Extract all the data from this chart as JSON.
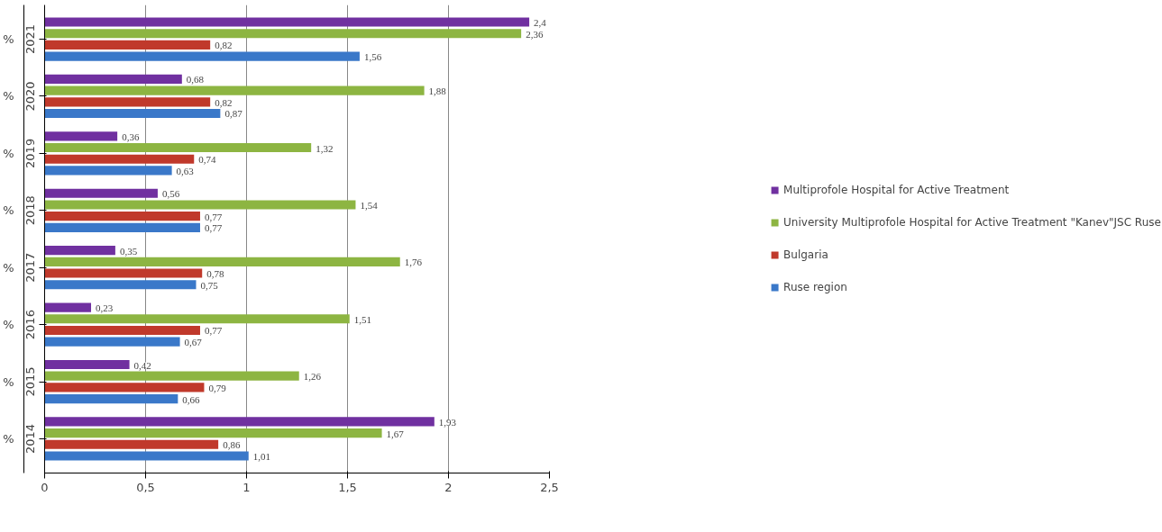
{
  "chart_data": {
    "type": "bar",
    "orientation": "horizontal",
    "categories": [
      "2021",
      "2020",
      "2019",
      "2018",
      "2017",
      "2016",
      "2015",
      "2014"
    ],
    "ylabel": "%",
    "series": [
      {
        "name": "Multiprofole Hospital for Active Treatment",
        "color": "#7030a0",
        "values": [
          2.4,
          0.68,
          0.36,
          0.56,
          0.35,
          0.23,
          0.42,
          1.93
        ],
        "value_labels": [
          "2,4",
          "0,68",
          "0,36",
          "0,56",
          "0,35",
          "0,23",
          "0,42",
          "1,93"
        ]
      },
      {
        "name": "University Multiprofole Hospital for Active Treatment \"Kanev\"JSC Ruse",
        "color": "#8db542",
        "values": [
          2.36,
          1.88,
          1.32,
          1.54,
          1.76,
          1.51,
          1.26,
          1.67
        ],
        "value_labels": [
          "2,36",
          "1,88",
          "1,32",
          "1,54",
          "1,76",
          "1,51",
          "1,26",
          "1,67"
        ]
      },
      {
        "name": "Bulgaria",
        "color": "#c0392b",
        "values": [
          0.82,
          0.82,
          0.74,
          0.77,
          0.78,
          0.77,
          0.79,
          0.86
        ],
        "value_labels": [
          "0,82",
          "0,82",
          "0,74",
          "0,77",
          "0,78",
          "0,77",
          "0,79",
          "0,86"
        ]
      },
      {
        "name": "Ruse region",
        "color": "#3a78c9",
        "values": [
          1.56,
          0.87,
          0.63,
          0.77,
          0.75,
          0.67,
          0.66,
          1.01
        ],
        "value_labels": [
          "1,56",
          "0,87",
          "0,63",
          "0,77",
          "0,75",
          "0,67",
          "0,66",
          "1,01"
        ]
      }
    ],
    "xlim": [
      0,
      2.5
    ],
    "xticks": [
      0,
      {
        "value": 0.5,
        "label": "0,5"
      },
      1,
      {
        "value": 1.5,
        "label": "1,5"
      },
      2,
      {
        "value": 2.5,
        "label": "2,5"
      }
    ],
    "grid": "x",
    "legend": "right"
  }
}
